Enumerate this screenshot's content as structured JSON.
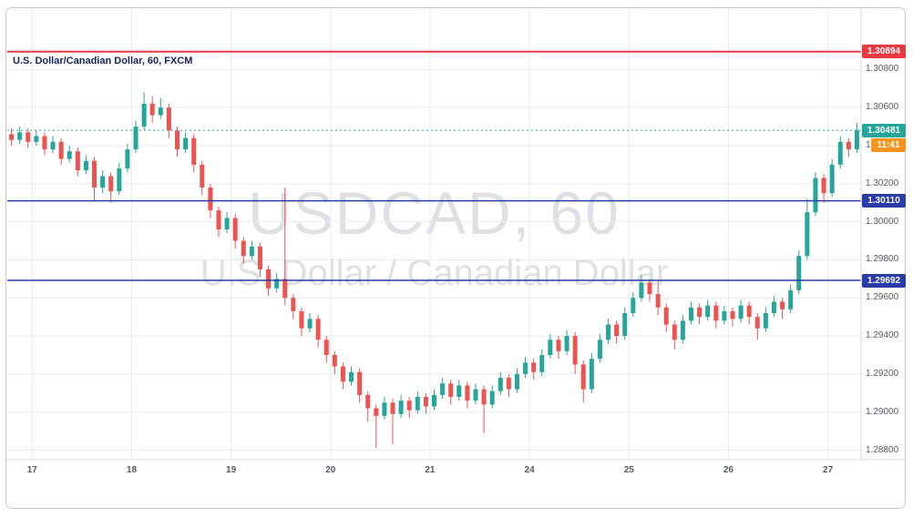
{
  "header": {
    "title": "U.S. Dollar/Canadian Dollar, 60, FXCM"
  },
  "watermark": {
    "line1": "USDCAD, 60",
    "line2": "U.S. Dollar / Canadian Dollar"
  },
  "chart_data": {
    "type": "candlestick",
    "title": "U.S. Dollar/Canadian Dollar, 60, FXCM",
    "symbol": "USDCAD",
    "interval_minutes": 60,
    "provider": "FXCM",
    "y_axis": {
      "min": 1.2875,
      "max": 1.3095,
      "tick_labels": [
        "1.30800",
        "1.30600",
        "1.30400",
        "1.30200",
        "1.30000",
        "1.29800",
        "1.29600",
        "1.29400",
        "1.29200",
        "1.29000",
        "1.28800"
      ]
    },
    "x_axis": {
      "labels": [
        {
          "text": "17",
          "index": 3
        },
        {
          "text": "18",
          "index": 15
        },
        {
          "text": "19",
          "index": 27
        },
        {
          "text": "20",
          "index": 39
        },
        {
          "text": "21",
          "index": 51
        },
        {
          "text": "24",
          "index": 63
        },
        {
          "text": "25",
          "index": 75
        },
        {
          "text": "26",
          "index": 87
        },
        {
          "text": "27",
          "index": 99
        }
      ]
    },
    "levels": [
      {
        "label": "1.30894",
        "price": 1.30894,
        "color": "#ea3943",
        "kind": "resistance-line"
      },
      {
        "label": "1.30110",
        "price": 1.3011,
        "color": "#283da8",
        "kind": "support-line"
      },
      {
        "label": "1.29692",
        "price": 1.29692,
        "color": "#283da8",
        "kind": "support-line"
      }
    ],
    "last": {
      "price": 1.30481,
      "label": "1.30481",
      "countdown": "11:41"
    },
    "colors": {
      "up": "#26a69a",
      "down": "#ef5350",
      "grid": "#e9ebee",
      "axis_text": "#555a64",
      "last_badge": "#26a69a",
      "countdown_badge": "#f7941e",
      "watermark": "rgba(138,143,158,0.28)"
    },
    "candles": [
      [
        1.3046,
        1.3049,
        1.304,
        1.3043
      ],
      [
        1.3043,
        1.305,
        1.3041,
        1.3047
      ],
      [
        1.3047,
        1.3049,
        1.3039,
        1.3042
      ],
      [
        1.3042,
        1.3048,
        1.304,
        1.3045
      ],
      [
        1.3045,
        1.3047,
        1.3035,
        1.3038
      ],
      [
        1.3038,
        1.3045,
        1.3036,
        1.3042
      ],
      [
        1.3042,
        1.3044,
        1.303,
        1.3033
      ],
      [
        1.3033,
        1.304,
        1.3031,
        1.3037
      ],
      [
        1.3037,
        1.3039,
        1.3024,
        1.3027
      ],
      [
        1.3027,
        1.3035,
        1.3025,
        1.3032
      ],
      [
        1.3032,
        1.3034,
        1.3011,
        1.3018
      ],
      [
        1.3018,
        1.3027,
        1.3015,
        1.3024
      ],
      [
        1.3024,
        1.3026,
        1.301,
        1.3016
      ],
      [
        1.3016,
        1.3031,
        1.3014,
        1.3028
      ],
      [
        1.3028,
        1.3041,
        1.3026,
        1.3038
      ],
      [
        1.3038,
        1.3053,
        1.3036,
        1.305
      ],
      [
        1.305,
        1.3068,
        1.3048,
        1.3062
      ],
      [
        1.3062,
        1.3066,
        1.3052,
        1.3056
      ],
      [
        1.3056,
        1.3065,
        1.3054,
        1.306
      ],
      [
        1.306,
        1.3062,
        1.3044,
        1.3048
      ],
      [
        1.3048,
        1.305,
        1.3034,
        1.3038
      ],
      [
        1.3038,
        1.3047,
        1.3036,
        1.3044
      ],
      [
        1.3044,
        1.3046,
        1.3026,
        1.303
      ],
      [
        1.303,
        1.3032,
        1.3014,
        1.3018
      ],
      [
        1.3018,
        1.302,
        1.3002,
        1.3006
      ],
      [
        1.3006,
        1.3008,
        1.2992,
        1.2996
      ],
      [
        1.2996,
        1.3005,
        1.2994,
        1.3002
      ],
      [
        1.3002,
        1.3004,
        1.2986,
        1.299
      ],
      [
        1.299,
        1.2992,
        1.2978,
        1.2982
      ],
      [
        1.2982,
        1.299,
        1.298,
        1.2987
      ],
      [
        1.2987,
        1.2989,
        1.2971,
        1.2975
      ],
      [
        1.2975,
        1.2977,
        1.2961,
        1.2965
      ],
      [
        1.2965,
        1.2973,
        1.2963,
        1.297
      ],
      [
        1.297,
        1.3018,
        1.2956,
        1.296
      ],
      [
        1.296,
        1.2962,
        1.2949,
        1.2953
      ],
      [
        1.2953,
        1.2955,
        1.294,
        1.2944
      ],
      [
        1.2944,
        1.2952,
        1.2942,
        1.2949
      ],
      [
        1.2949,
        1.2951,
        1.2934,
        1.2938
      ],
      [
        1.2938,
        1.294,
        1.2926,
        1.293
      ],
      [
        1.293,
        1.2932,
        1.292,
        1.2924
      ],
      [
        1.2924,
        1.2926,
        1.2912,
        1.2916
      ],
      [
        1.2916,
        1.2924,
        1.2914,
        1.2921
      ],
      [
        1.2921,
        1.2923,
        1.2905,
        1.2909
      ],
      [
        1.2909,
        1.2911,
        1.2895,
        1.2902
      ],
      [
        1.2902,
        1.2904,
        1.2881,
        1.2898
      ],
      [
        1.2898,
        1.2908,
        1.2896,
        1.2905
      ],
      [
        1.2905,
        1.2907,
        1.2883,
        1.2899
      ],
      [
        1.2899,
        1.2909,
        1.2897,
        1.2906
      ],
      [
        1.2906,
        1.2908,
        1.2897,
        1.2901
      ],
      [
        1.2901,
        1.2911,
        1.2899,
        1.2908
      ],
      [
        1.2908,
        1.291,
        1.2899,
        1.2903
      ],
      [
        1.2903,
        1.2912,
        1.2901,
        1.2909
      ],
      [
        1.2909,
        1.2918,
        1.2907,
        1.2915
      ],
      [
        1.2915,
        1.2917,
        1.2904,
        1.2908
      ],
      [
        1.2908,
        1.2917,
        1.2906,
        1.2914
      ],
      [
        1.2914,
        1.2916,
        1.2902,
        1.2906
      ],
      [
        1.2906,
        1.2915,
        1.2904,
        1.2912
      ],
      [
        1.2912,
        1.2914,
        1.2889,
        1.2904
      ],
      [
        1.2904,
        1.2914,
        1.2902,
        1.2911
      ],
      [
        1.2911,
        1.2921,
        1.2909,
        1.2918
      ],
      [
        1.2918,
        1.292,
        1.2908,
        1.2912
      ],
      [
        1.2912,
        1.2923,
        1.291,
        1.292
      ],
      [
        1.292,
        1.2929,
        1.2918,
        1.2926
      ],
      [
        1.2926,
        1.2928,
        1.2917,
        1.2921
      ],
      [
        1.2921,
        1.2933,
        1.2919,
        1.293
      ],
      [
        1.293,
        1.2941,
        1.2928,
        1.2938
      ],
      [
        1.2938,
        1.294,
        1.2928,
        1.2932
      ],
      [
        1.2932,
        1.2943,
        1.293,
        1.294
      ],
      [
        1.294,
        1.2942,
        1.292,
        1.2925
      ],
      [
        1.2925,
        1.2927,
        1.2905,
        1.2912
      ],
      [
        1.2912,
        1.2931,
        1.291,
        1.2928
      ],
      [
        1.2928,
        1.2941,
        1.2926,
        1.2938
      ],
      [
        1.2938,
        1.2949,
        1.2936,
        1.2946
      ],
      [
        1.2946,
        1.2948,
        1.2936,
        1.294
      ],
      [
        1.294,
        1.2955,
        1.2938,
        1.2952
      ],
      [
        1.2952,
        1.2963,
        1.295,
        1.296
      ],
      [
        1.296,
        1.2972,
        1.2958,
        1.2968
      ],
      [
        1.2968,
        1.297,
        1.2958,
        1.2962
      ],
      [
        1.2962,
        1.2969,
        1.2951,
        1.2955
      ],
      [
        1.2955,
        1.2957,
        1.2942,
        1.2946
      ],
      [
        1.2946,
        1.2948,
        1.2933,
        1.2938
      ],
      [
        1.2938,
        1.2951,
        1.2936,
        1.2948
      ],
      [
        1.2948,
        1.2958,
        1.2946,
        1.2955
      ],
      [
        1.2955,
        1.2957,
        1.2946,
        1.295
      ],
      [
        1.295,
        1.2959,
        1.2948,
        1.2956
      ],
      [
        1.2956,
        1.2958,
        1.2944,
        1.2948
      ],
      [
        1.2948,
        1.2956,
        1.2946,
        1.2953
      ],
      [
        1.2953,
        1.2955,
        1.2945,
        1.2949
      ],
      [
        1.2949,
        1.2959,
        1.2947,
        1.2956
      ],
      [
        1.2956,
        1.2958,
        1.2946,
        1.295
      ],
      [
        1.295,
        1.2952,
        1.2938,
        1.2944
      ],
      [
        1.2944,
        1.2955,
        1.2942,
        1.2952
      ],
      [
        1.2952,
        1.2961,
        1.295,
        1.2958
      ],
      [
        1.2958,
        1.296,
        1.2949,
        1.2954
      ],
      [
        1.2954,
        1.2967,
        1.2952,
        1.2964
      ],
      [
        1.2964,
        1.2985,
        1.2962,
        1.2982
      ],
      [
        1.2982,
        1.3012,
        1.298,
        1.3005
      ],
      [
        1.3005,
        1.3026,
        1.3003,
        1.3023
      ],
      [
        1.3023,
        1.3025,
        1.301,
        1.3015
      ],
      [
        1.3015,
        1.3033,
        1.3013,
        1.303
      ],
      [
        1.303,
        1.3045,
        1.3028,
        1.3042
      ],
      [
        1.3042,
        1.3044,
        1.3034,
        1.3038
      ],
      [
        1.3038,
        1.3052,
        1.3036,
        1.30481
      ]
    ]
  }
}
